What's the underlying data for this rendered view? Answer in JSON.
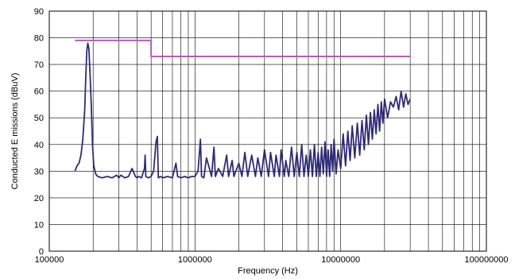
{
  "chart_data": {
    "type": "line",
    "xlabel": "Frequency (Hz)",
    "ylabel": "Conducted E missions (dBuV)",
    "xscale": "log",
    "xlim": [
      100000,
      100000000
    ],
    "ylim": [
      0,
      90
    ],
    "grid": true,
    "x_tick_labels": [
      "100000",
      "1000000",
      "10000000",
      "100000000"
    ],
    "x_tick_values": [
      100000,
      1000000,
      10000000,
      100000000
    ],
    "y_ticks": [
      0,
      10,
      20,
      30,
      40,
      50,
      60,
      70,
      80,
      90
    ],
    "colors": {
      "emissions": "#2e2a7a",
      "limit": "#b05fb0",
      "grid": "#000000"
    },
    "series": [
      {
        "key": "limit",
        "x": [
          150000,
          500000,
          500000,
          30000000
        ],
        "y": [
          79,
          79,
          73,
          73
        ]
      },
      {
        "key": "emissions",
        "x": [
          150000,
          155000,
          160000,
          165000,
          170000,
          175000,
          178000,
          181000,
          184000,
          187000,
          190000,
          194000,
          198000,
          202000,
          208000,
          215000,
          230000,
          250000,
          270000,
          290000,
          300000,
          310000,
          330000,
          350000,
          370000,
          390000,
          400000,
          410000,
          430000,
          450000,
          455000,
          460000,
          480000,
          500000,
          520000,
          540000,
          552000,
          560000,
          580000,
          600000,
          650000,
          700000,
          740000,
          760000,
          800000,
          850000,
          900000,
          950000,
          1000000,
          1050000,
          1090000,
          1110000,
          1150000,
          1200000,
          1300000,
          1350000,
          1380000,
          1450000,
          1550000,
          1650000,
          1700000,
          1800000,
          1850000,
          2000000,
          2100000,
          2200000,
          2300000,
          2450000,
          2600000,
          2700000,
          2850000,
          3000000,
          3200000,
          3300000,
          3500000,
          3600000,
          3800000,
          3900000,
          4100000,
          4200000,
          4400000,
          4600000,
          4800000,
          5000000,
          5200000,
          5400000,
          5600000,
          5800000,
          6000000,
          6200000,
          6400000,
          6600000,
          6800000,
          7000000,
          7200000,
          7400000,
          7600000,
          7800000,
          8000000,
          8200000,
          8400000,
          8600000,
          8800000,
          9000000,
          9300000,
          9600000,
          10000000,
          10400000,
          10800000,
          11200000,
          11600000,
          12000000,
          12500000,
          13000000,
          13500000,
          14000000,
          14500000,
          15000000,
          15500000,
          16000000,
          16500000,
          17000000,
          17500000,
          18000000,
          18500000,
          19000000,
          19500000,
          20000000,
          21000000,
          22000000,
          23000000,
          24000000,
          25000000,
          26000000,
          27000000,
          28000000,
          29000000,
          30000000
        ],
        "y": [
          30,
          32,
          33,
          36,
          42,
          53,
          65,
          75,
          78,
          76,
          68,
          55,
          40,
          32,
          29,
          28,
          27.5,
          28,
          27.5,
          28.5,
          27.5,
          28.5,
          27.5,
          28,
          31,
          28,
          27.5,
          28,
          27.5,
          31,
          36,
          28,
          27.5,
          28,
          30,
          41,
          43,
          27.5,
          28,
          27.5,
          28,
          27.5,
          33,
          28,
          27.5,
          28,
          27.5,
          28,
          28,
          30,
          42,
          28,
          27.5,
          35,
          28,
          39,
          28,
          31,
          28,
          36,
          28,
          34,
          28,
          33,
          28,
          37,
          28,
          36,
          28,
          35,
          28,
          38,
          28,
          37,
          28,
          36,
          28,
          38,
          28,
          34,
          28,
          39,
          28,
          37,
          28,
          40,
          28,
          36,
          28,
          38,
          28,
          40,
          28,
          37,
          28,
          39,
          29,
          41,
          28,
          38,
          28,
          40,
          30,
          42,
          29,
          38,
          31,
          44,
          32,
          45,
          34,
          47,
          35,
          48,
          36,
          49,
          38,
          51,
          40,
          52,
          42,
          53,
          44,
          55,
          45,
          56,
          48,
          57,
          50,
          56,
          54,
          58,
          53,
          60,
          54,
          59,
          55,
          57
        ]
      }
    ]
  }
}
